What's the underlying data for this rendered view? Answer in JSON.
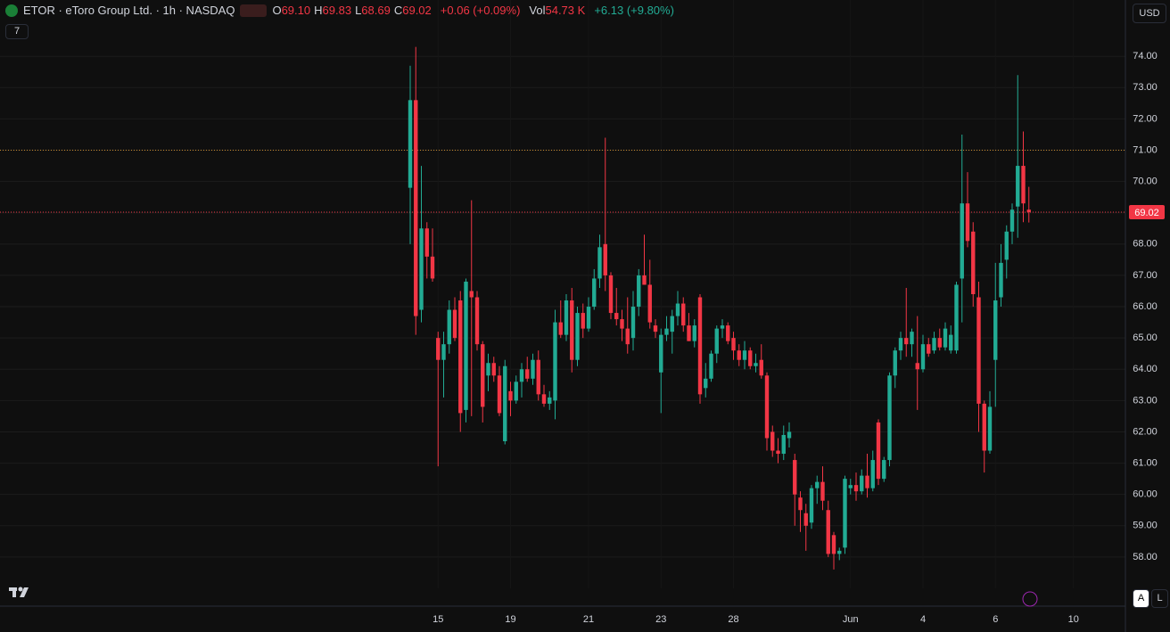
{
  "header": {
    "title": "ETOR · eToro Group Ltd. · 1h · NASDAQ",
    "ohlc": [
      {
        "key": "O",
        "value": "69.10"
      },
      {
        "key": "H",
        "value": "69.83"
      },
      {
        "key": "L",
        "value": "68.69"
      },
      {
        "key": "C",
        "value": "69.02"
      }
    ],
    "change": "+0.06 (+0.09%)",
    "vol_label": "Vol",
    "vol_value": "54.73 K",
    "vol_change": "+6.13 (+9.80%)",
    "indicators_count": "7",
    "currency": "USD",
    "auto_button": "A",
    "log_button": "L"
  },
  "chart_data": {
    "type": "candlestick",
    "up_color": "#22ab94",
    "down_color": "#f23645",
    "grid": true,
    "ylim": [
      57.0,
      75.8
    ],
    "yticks": [
      {
        "value": 58,
        "label": "58.00"
      },
      {
        "value": 59,
        "label": "59.00"
      },
      {
        "value": 60,
        "label": "60.00"
      },
      {
        "value": 61,
        "label": "61.00"
      },
      {
        "value": 62,
        "label": "62.00"
      },
      {
        "value": 63,
        "label": "63.00"
      },
      {
        "value": 64,
        "label": "64.00"
      },
      {
        "value": 65,
        "label": "65.00"
      },
      {
        "value": 66,
        "label": "66.00"
      },
      {
        "value": 67,
        "label": "67.00"
      },
      {
        "value": 68,
        "label": "68.00"
      },
      {
        "value": 69,
        "label": "69.00"
      },
      {
        "value": 70,
        "label": "70.00"
      },
      {
        "value": 71,
        "label": "71.00"
      },
      {
        "value": 72,
        "label": "72.00"
      },
      {
        "value": 73,
        "label": "73.00"
      },
      {
        "value": 74,
        "label": "74.00"
      }
    ],
    "price_line": 69.02,
    "price_line_color": "#f23645",
    "reference_line": 71.0,
    "reference_line_color": "#c98a2e",
    "categories": [
      null,
      null,
      null,
      null,
      null,
      "15",
      null,
      null,
      null,
      null,
      null,
      null,
      null,
      null,
      null,
      null,
      null,
      null,
      "19",
      null,
      null,
      null,
      null,
      null,
      null,
      null,
      null,
      null,
      null,
      null,
      null,
      null,
      "21",
      null,
      null,
      null,
      null,
      null,
      null,
      null,
      null,
      null,
      null,
      null,
      null,
      "23",
      null,
      null,
      null,
      null,
      null,
      null,
      null,
      null,
      null,
      null,
      null,
      null,
      "28",
      null,
      null,
      null,
      null,
      null,
      null,
      null,
      null,
      null,
      null,
      null,
      null,
      null,
      null,
      null,
      null,
      null,
      null,
      null,
      null,
      "Jun",
      null,
      null,
      null,
      null,
      null,
      null,
      null,
      null,
      null,
      null,
      null,
      null,
      "4",
      null,
      null,
      null,
      null,
      null,
      null,
      null,
      null,
      null,
      null,
      null,
      null,
      "6",
      null,
      null,
      null,
      null,
      null,
      null,
      null,
      null,
      null,
      null,
      null,
      null,
      null,
      "10"
    ],
    "open": [
      69.8,
      72.6,
      65.9,
      68.5,
      67.6,
      65.0,
      64.3,
      64.8,
      65.9,
      66.2,
      62.7,
      66.5,
      66.3,
      64.8,
      63.8,
      64.2,
      63.8,
      61.7,
      63.3,
      63.0,
      63.6,
      64.0,
      63.7,
      64.3,
      63.2,
      62.9,
      63.0,
      65.5,
      65.1,
      66.2,
      64.3,
      65.8,
      65.3,
      66.0,
      66.9,
      68.0,
      67.0,
      65.8,
      65.6,
      65.3,
      65.0,
      66.0,
      67.0,
      66.7,
      65.4,
      63.9,
      65.1,
      65.2,
      65.7,
      66.1,
      65.4,
      64.9,
      66.3,
      63.4,
      63.7,
      64.5,
      65.3,
      65.4,
      65.0,
      64.6,
      64.3,
      64.6,
      64.1,
      64.3,
      63.8,
      62.0,
      61.4,
      61.3,
      61.8,
      61.1,
      59.9,
      59.4,
      59.1,
      60.2,
      60.4,
      59.5,
      58.7,
      58.1,
      58.3,
      60.2,
      60.3,
      60.1,
      60.6,
      60.2,
      62.3,
      60.5,
      61.1,
      63.8,
      64.6,
      65.0,
      64.8,
      64.2,
      64.0,
      64.8,
      64.6,
      65.0,
      64.7,
      64.6,
      64.6,
      66.9,
      69.3,
      68.4,
      66.3,
      62.9,
      61.4,
      64.3,
      66.3,
      67.5,
      68.4,
      69.2,
      70.5,
      69.1,
      null,
      null,
      null,
      null,
      null,
      null,
      null,
      null
    ],
    "high": [
      73.7,
      74.3,
      70.5,
      68.7,
      68.5,
      65.2,
      65.2,
      66.2,
      66.3,
      66.5,
      66.9,
      69.4,
      66.5,
      64.9,
      64.5,
      64.4,
      64.1,
      64.3,
      63.6,
      63.8,
      64.2,
      64.4,
      64.5,
      64.6,
      63.5,
      63.3,
      65.9,
      66.2,
      66.4,
      66.6,
      66.0,
      66.1,
      66.3,
      67.2,
      68.3,
      71.4,
      67.1,
      66.6,
      65.9,
      66.3,
      66.5,
      67.2,
      68.3,
      67.5,
      65.6,
      65.3,
      65.7,
      65.9,
      66.5,
      66.3,
      65.8,
      65.6,
      66.4,
      64.2,
      64.6,
      65.4,
      65.6,
      65.5,
      65.2,
      64.8,
      64.9,
      64.7,
      64.5,
      64.8,
      63.9,
      62.2,
      61.8,
      62.2,
      62.3,
      61.3,
      60.1,
      59.7,
      60.3,
      60.6,
      60.9,
      59.8,
      58.8,
      58.3,
      60.6,
      60.5,
      60.7,
      60.8,
      61.3,
      61.4,
      62.4,
      61.2,
      63.9,
      64.7,
      65.2,
      66.6,
      65.3,
      65.7,
      65.1,
      65.0,
      65.2,
      65.3,
      65.5,
      65.4,
      66.8,
      71.5,
      70.3,
      68.7,
      66.8,
      63.0,
      63.3,
      67.4,
      68.0,
      68.6,
      69.3,
      73.4,
      71.6,
      69.83,
      null,
      null,
      null,
      null,
      null,
      null,
      null,
      null
    ],
    "low": [
      68.0,
      65.1,
      65.5,
      66.9,
      66.8,
      60.9,
      63.1,
      64.5,
      64.9,
      62.0,
      62.3,
      62.5,
      64.6,
      62.3,
      63.3,
      63.6,
      62.5,
      61.6,
      62.5,
      62.9,
      63.1,
      63.6,
      63.5,
      63.0,
      62.8,
      62.7,
      62.4,
      65.0,
      64.9,
      63.9,
      64.1,
      65.0,
      65.2,
      65.9,
      66.6,
      66.5,
      65.6,
      65.4,
      64.9,
      64.5,
      64.6,
      65.7,
      66.7,
      65.3,
      65.0,
      62.6,
      64.9,
      64.5,
      65.4,
      65.2,
      64.9,
      64.7,
      62.9,
      63.1,
      63.6,
      64.2,
      65.0,
      64.8,
      64.3,
      64.1,
      64.0,
      64.0,
      63.9,
      63.7,
      61.4,
      61.2,
      61.0,
      61.1,
      61.5,
      59.0,
      58.8,
      58.2,
      58.9,
      59.7,
      59.5,
      58.0,
      57.6,
      57.9,
      58.1,
      60.0,
      59.8,
      60.0,
      59.9,
      60.1,
      60.3,
      60.4,
      60.9,
      63.4,
      64.3,
      64.4,
      64.4,
      62.7,
      63.9,
      64.4,
      64.5,
      64.6,
      64.6,
      64.5,
      64.5,
      65.5,
      67.9,
      66.0,
      62.0,
      60.7,
      61.3,
      62.8,
      66.0,
      66.9,
      68.0,
      68.2,
      68.7,
      68.69,
      null,
      null,
      null,
      null,
      null,
      null,
      null,
      null
    ],
    "close": [
      72.6,
      65.7,
      68.5,
      67.6,
      66.9,
      64.3,
      64.8,
      65.9,
      65.0,
      62.6,
      66.8,
      66.3,
      64.8,
      62.8,
      64.2,
      63.8,
      62.6,
      64.1,
      63.0,
      63.6,
      64.0,
      63.7,
      64.3,
      63.2,
      62.9,
      63.1,
      65.5,
      65.1,
      66.2,
      64.3,
      65.8,
      65.3,
      66.0,
      66.9,
      67.9,
      67.0,
      65.8,
      65.6,
      65.3,
      64.8,
      66.0,
      67.0,
      66.7,
      65.5,
      65.2,
      65.1,
      65.3,
      65.7,
      66.1,
      65.4,
      64.9,
      65.4,
      63.2,
      63.7,
      64.5,
      65.3,
      65.4,
      64.9,
      64.6,
      64.3,
      64.6,
      64.1,
      64.2,
      63.8,
      61.8,
      61.4,
      61.3,
      61.9,
      62.0,
      60.0,
      59.5,
      59.0,
      60.2,
      60.4,
      59.8,
      58.1,
      58.1,
      58.2,
      60.5,
      60.3,
      60.1,
      60.6,
      60.2,
      61.1,
      60.5,
      61.1,
      63.8,
      64.6,
      65.0,
      64.8,
      65.2,
      64.0,
      64.8,
      64.5,
      65.0,
      64.7,
      65.3,
      65.1,
      66.7,
      69.3,
      68.1,
      66.4,
      62.9,
      61.4,
      62.8,
      66.2,
      67.4,
      68.4,
      69.1,
      70.5,
      69.3,
      69.02,
      null,
      null,
      null,
      null,
      null,
      null,
      null,
      null
    ]
  }
}
